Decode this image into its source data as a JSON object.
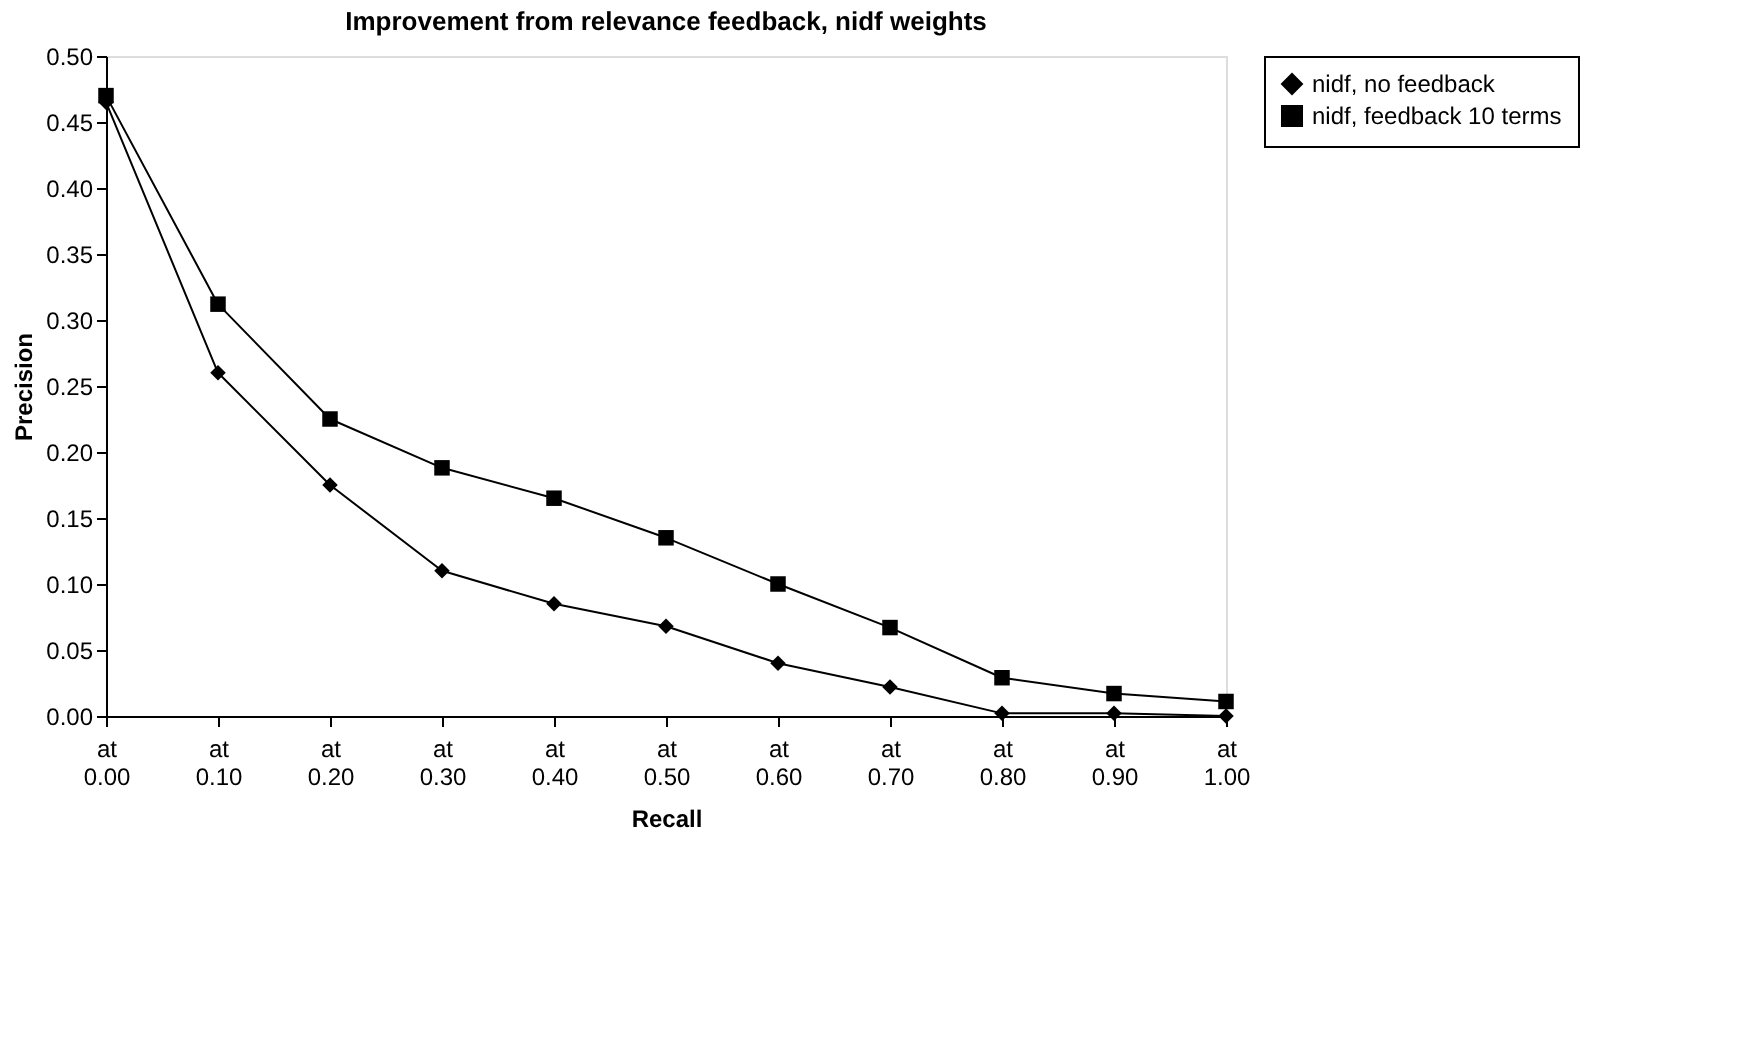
{
  "chart_data": {
    "type": "line",
    "title": "Improvement from relevance feedback, nidf weights",
    "xlabel": "Recall",
    "ylabel": "Precision",
    "categories": [
      "at 0.00",
      "at 0.10",
      "at 0.20",
      "at 0.30",
      "at 0.40",
      "at 0.50",
      "at 0.60",
      "at 0.70",
      "at 0.80",
      "at 0.90",
      "at 1.00"
    ],
    "series": [
      {
        "name": "nidf, no feedback",
        "color": "#000000",
        "marker": "diamond",
        "values": [
          0.465,
          0.26,
          0.175,
          0.11,
          0.085,
          0.068,
          0.04,
          0.022,
          0.002,
          0.002,
          0.0
        ]
      },
      {
        "name": "nidf, feedback 10 terms",
        "color": "#000000",
        "marker": "square",
        "values": [
          0.47,
          0.312,
          0.225,
          0.188,
          0.165,
          0.135,
          0.1,
          0.067,
          0.029,
          0.017,
          0.011
        ]
      }
    ],
    "ylim": [
      0,
      0.5
    ],
    "yticks": [
      {
        "value": 0,
        "label": "0.00"
      },
      0.05,
      {
        "value": 0.1,
        "label": "0.10"
      },
      0.15,
      {
        "value": 0.2,
        "label": "0.20"
      },
      0.25,
      {
        "value": 0.3,
        "label": "0.30"
      },
      0.35,
      {
        "value": 0.4,
        "label": "0.40"
      },
      0.45,
      {
        "value": 0.5,
        "label": "0.50"
      }
    ],
    "grid": false,
    "legend": "right",
    "line_style": "solid"
  }
}
